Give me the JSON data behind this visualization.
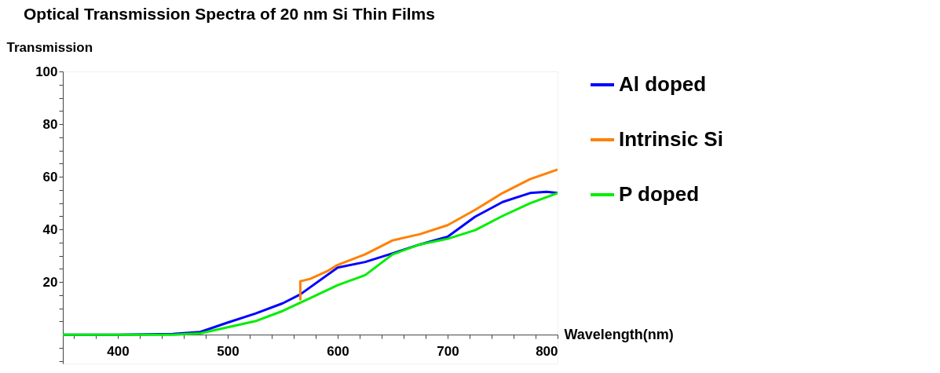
{
  "chart_data": {
    "type": "line",
    "title": "Optical Transmission Spectra of 20 nm Si Thin Films",
    "xlabel": "Wavelength(nm)",
    "ylabel": "Transmission",
    "xlim": [
      350,
      800
    ],
    "ylim": [
      -11,
      100
    ],
    "xticks": [
      {
        "value": 360,
        "label": null
      },
      {
        "value": 380,
        "label": null
      },
      400,
      {
        "value": 420,
        "label": null
      },
      {
        "value": 440,
        "label": null
      },
      {
        "value": 460,
        "label": null
      },
      {
        "value": 480,
        "label": null
      },
      500,
      {
        "value": 520,
        "label": null
      },
      {
        "value": 540,
        "label": null
      },
      {
        "value": 560,
        "label": null
      },
      {
        "value": 580,
        "label": null
      },
      600,
      {
        "value": 620,
        "label": null
      },
      {
        "value": 640,
        "label": null
      },
      {
        "value": 660,
        "label": null
      },
      {
        "value": 680,
        "label": null
      },
      700,
      {
        "value": 720,
        "label": null
      },
      {
        "value": 740,
        "label": null
      },
      {
        "value": 760,
        "label": null
      },
      {
        "value": 780,
        "label": null
      },
      800
    ],
    "yticks": [
      {
        "value": -10,
        "label": null
      },
      {
        "value": -5,
        "label": null
      },
      {
        "value": 5,
        "label": null
      },
      {
        "value": 10,
        "label": null
      },
      {
        "value": 15,
        "label": null
      },
      20,
      {
        "value": 25,
        "label": null
      },
      {
        "value": 30,
        "label": null
      },
      {
        "value": 35,
        "label": null
      },
      40,
      {
        "value": 45,
        "label": null
      },
      {
        "value": 50,
        "label": null
      },
      {
        "value": 55,
        "label": null
      },
      60,
      {
        "value": 65,
        "label": null
      },
      {
        "value": 70,
        "label": null
      },
      {
        "value": 75,
        "label": null
      },
      80,
      {
        "value": 85,
        "label": null
      },
      {
        "value": 90,
        "label": null
      },
      {
        "value": 95,
        "label": null
      },
      100
    ],
    "legend": "right",
    "grid": false,
    "marker": "none",
    "line_style": "solid",
    "series": [
      {
        "name": "Al doped",
        "color": "#0000ff",
        "x": [
          350,
          400,
          450,
          475,
          500,
          525,
          550,
          566,
          600,
          625,
          650,
          675,
          700,
          725,
          750,
          775,
          790,
          800
        ],
        "values": [
          0,
          0,
          0.3,
          1,
          4.6,
          8,
          11.9,
          15.3,
          25.5,
          27.6,
          30.9,
          34.3,
          37.2,
          44.8,
          50.4,
          53.8,
          54.3,
          53.8
        ]
      },
      {
        "name": "Intrinsic Si",
        "color": "#ff8000",
        "x": [
          566,
          566,
          575,
          590,
          600,
          625,
          650,
          675,
          700,
          725,
          750,
          775,
          800
        ],
        "values": [
          13,
          20.3,
          21.2,
          24,
          26.5,
          30.5,
          35.8,
          38.2,
          41.6,
          47.4,
          53.8,
          59.1,
          62.7
        ]
      },
      {
        "name": "P doped",
        "color": "#00ee00",
        "x": [
          350,
          400,
          450,
          475,
          500,
          525,
          550,
          575,
          600,
          625,
          650,
          675,
          700,
          725,
          750,
          775,
          800
        ],
        "values": [
          0,
          0,
          0,
          0.5,
          2.8,
          5.1,
          9,
          13.9,
          18.8,
          22.6,
          30.5,
          34.3,
          36.4,
          39.7,
          45.1,
          49.9,
          53.8
        ]
      }
    ]
  }
}
